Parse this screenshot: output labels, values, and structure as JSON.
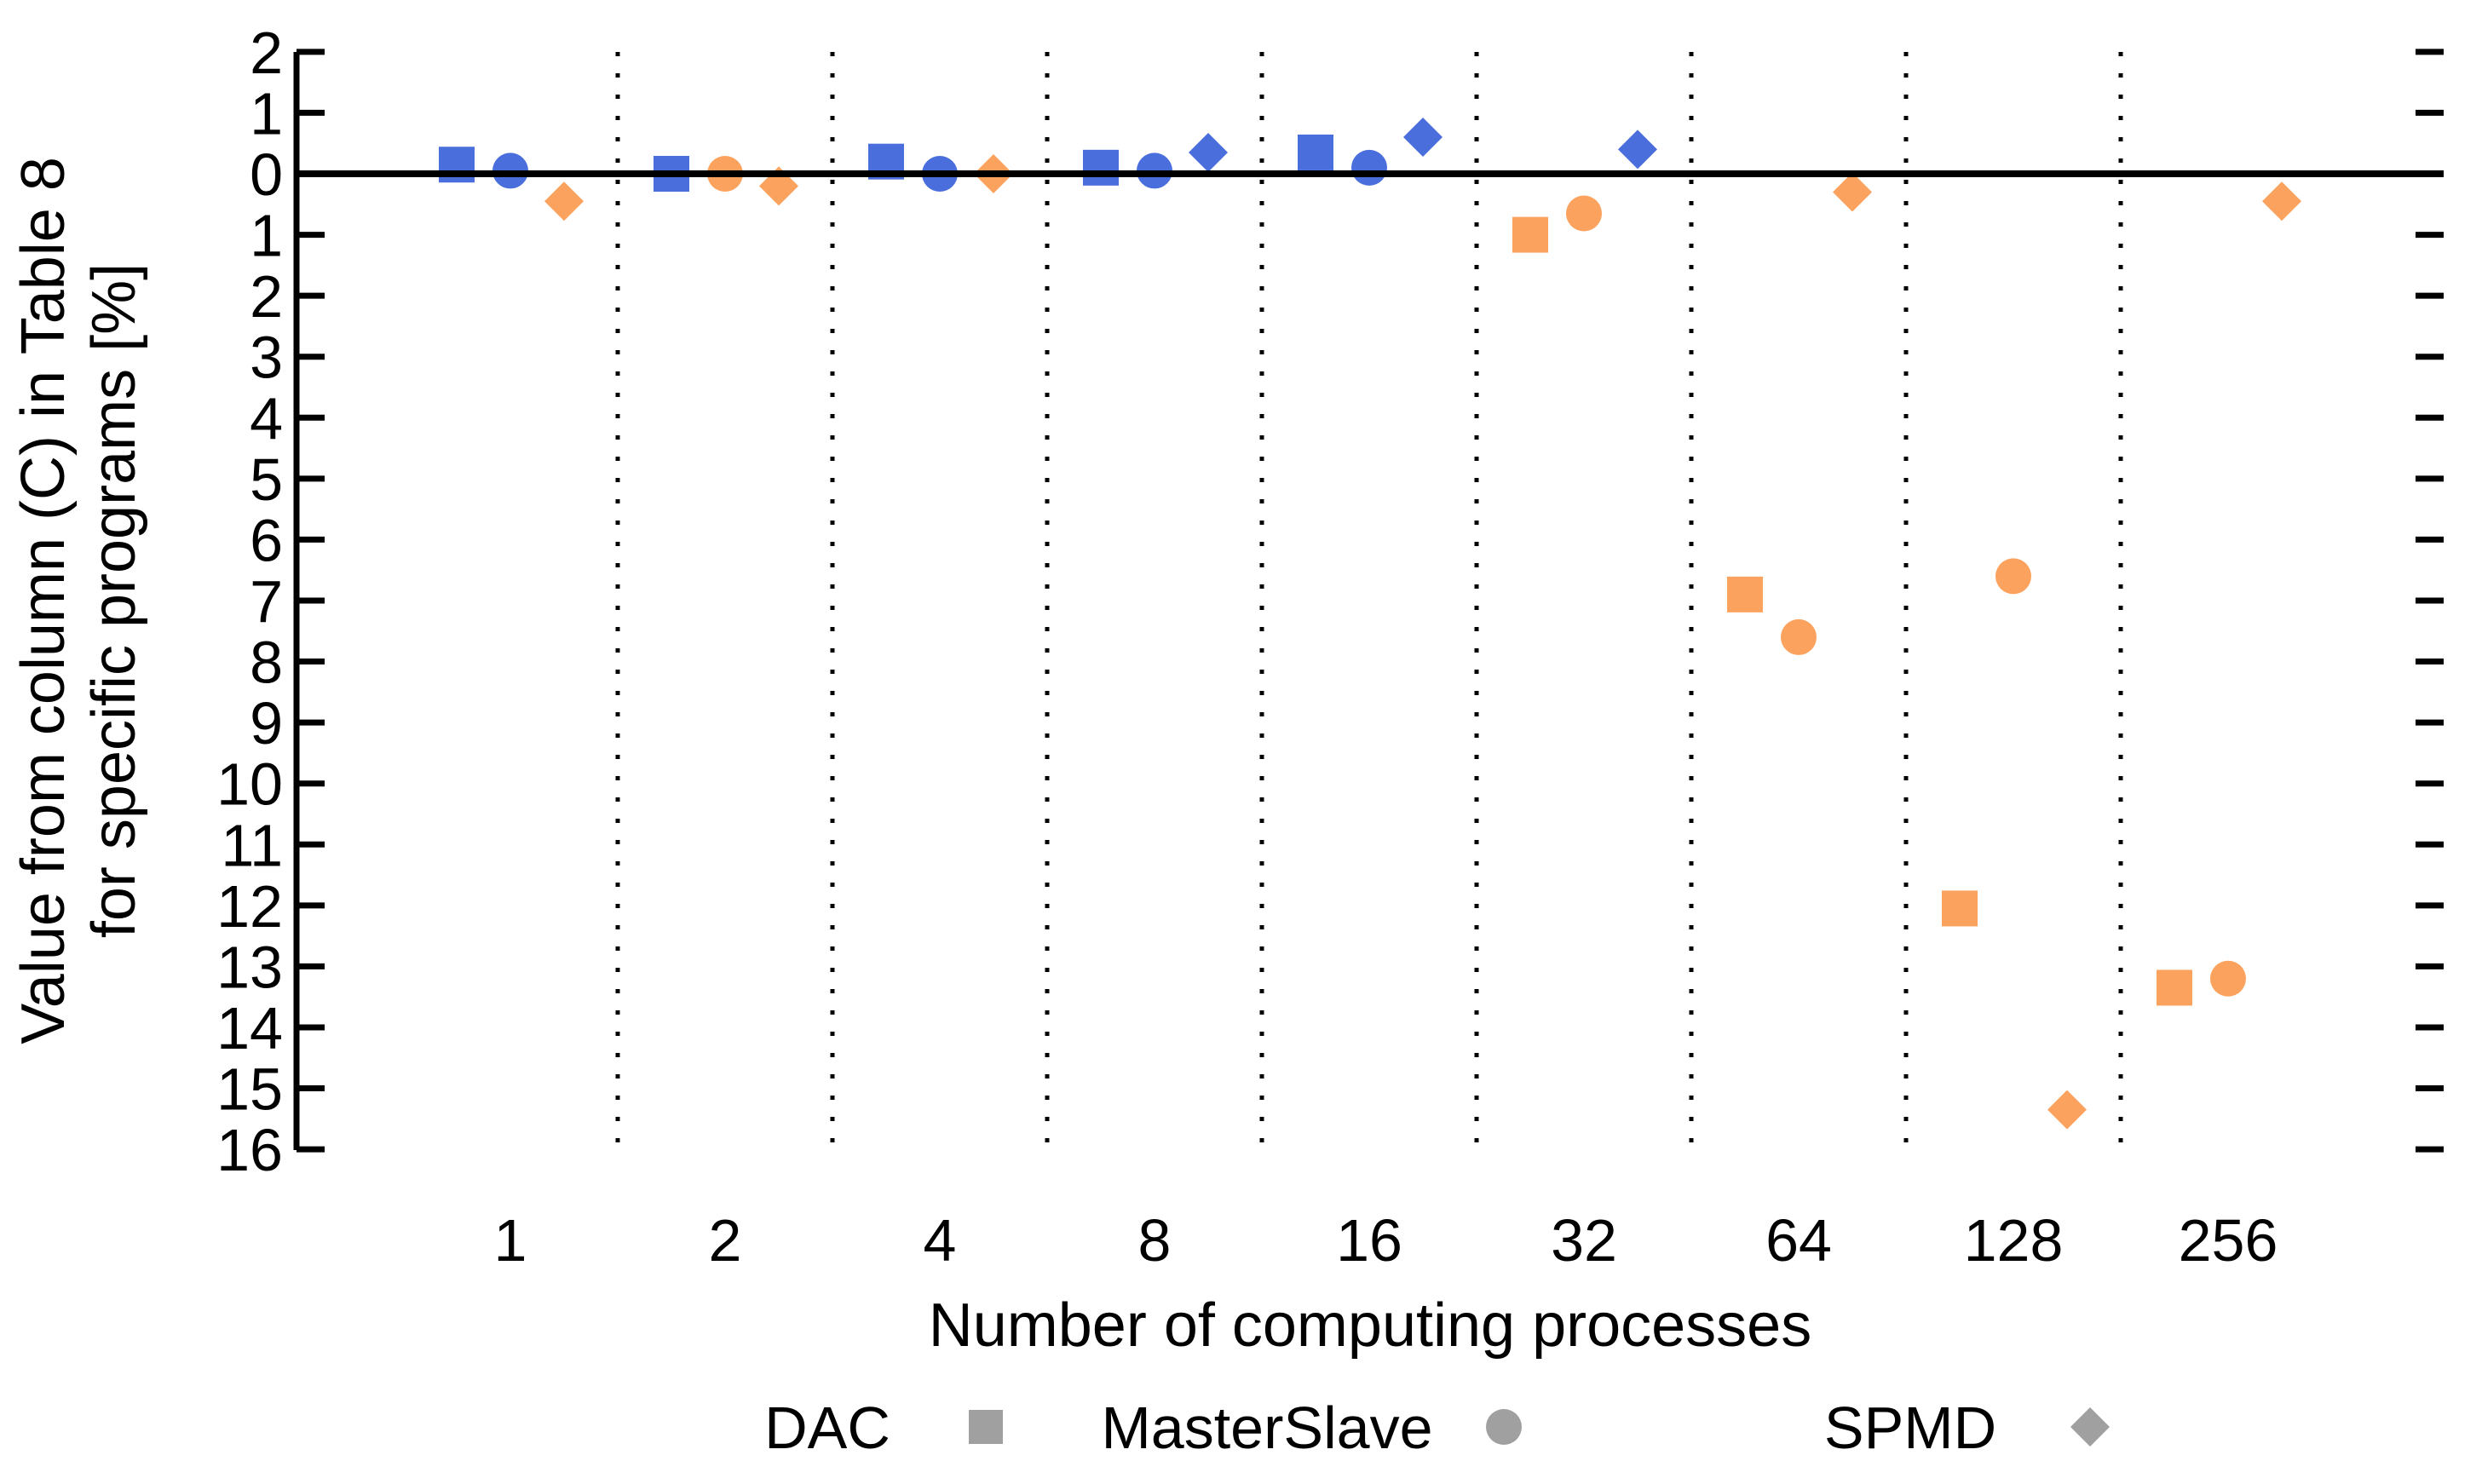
{
  "chart_data": {
    "type": "scatter",
    "title": "",
    "xlabel": "Number of computing processes",
    "ylabel_line1": "Value from column (C) in Table 8",
    "ylabel_line2": "for specific programs [%]",
    "x_categories": [
      "1",
      "2",
      "4",
      "8",
      "16",
      "32",
      "64",
      "128",
      "256"
    ],
    "y_axis": {
      "note": "Axis labels are absolute values: 2,1 above the zero line and 1..16 below it. Series y values below are distances under the zero line in percent (negative = above the line).",
      "labels_top_to_bottom": [
        "2",
        "1",
        "0",
        "1",
        "2",
        "3",
        "4",
        "5",
        "6",
        "7",
        "8",
        "9",
        "10",
        "11",
        "12",
        "13",
        "14",
        "15",
        "16"
      ],
      "unit": "%",
      "grid": "vertical dotted lines between category columns only"
    },
    "series": [
      {
        "name": "DAC",
        "marker": "square",
        "points": [
          {
            "x": "1",
            "y": -0.15,
            "color": "blue"
          },
          {
            "x": "2",
            "y": 0.0,
            "color": "blue"
          },
          {
            "x": "4",
            "y": -0.2,
            "color": "blue"
          },
          {
            "x": "8",
            "y": -0.1,
            "color": "blue"
          },
          {
            "x": "16",
            "y": -0.35,
            "color": "blue"
          },
          {
            "x": "32",
            "y": 1.0,
            "color": "orange"
          },
          {
            "x": "64",
            "y": 6.9,
            "color": "orange"
          },
          {
            "x": "128",
            "y": 12.05,
            "color": "orange"
          },
          {
            "x": "256",
            "y": 13.35,
            "color": "orange"
          }
        ]
      },
      {
        "name": "MasterSlave",
        "marker": "circle",
        "points": [
          {
            "x": "1",
            "y": -0.05,
            "color": "blue"
          },
          {
            "x": "2",
            "y": 0.0,
            "color": "orange"
          },
          {
            "x": "4",
            "y": 0.0,
            "color": "blue"
          },
          {
            "x": "8",
            "y": -0.05,
            "color": "blue"
          },
          {
            "x": "16",
            "y": -0.1,
            "color": "blue"
          },
          {
            "x": "32",
            "y": 0.65,
            "color": "orange"
          },
          {
            "x": "64",
            "y": 7.6,
            "color": "orange"
          },
          {
            "x": "128",
            "y": 6.6,
            "color": "orange"
          },
          {
            "x": "256",
            "y": 13.2,
            "color": "orange"
          }
        ]
      },
      {
        "name": "SPMD",
        "marker": "diamond",
        "points": [
          {
            "x": "1",
            "y": 0.45,
            "color": "orange"
          },
          {
            "x": "2",
            "y": 0.2,
            "color": "orange"
          },
          {
            "x": "4",
            "y": 0.0,
            "color": "orange"
          },
          {
            "x": "8",
            "y": -0.35,
            "color": "blue"
          },
          {
            "x": "16",
            "y": -0.6,
            "color": "blue"
          },
          {
            "x": "32",
            "y": -0.4,
            "color": "blue"
          },
          {
            "x": "64",
            "y": 0.3,
            "color": "orange"
          },
          {
            "x": "128",
            "y": 15.35,
            "color": "orange"
          },
          {
            "x": "256",
            "y": 0.45,
            "color": "orange"
          }
        ]
      }
    ],
    "legend": [
      {
        "label": "DAC",
        "marker": "square"
      },
      {
        "label": "MasterSlave",
        "marker": "circle"
      },
      {
        "label": "SPMD",
        "marker": "diamond"
      }
    ],
    "colors": {
      "blue": "#4a6edb",
      "orange": "#fba35e",
      "legend_gray": "#a0a0a0",
      "axis_black": "#000000"
    }
  }
}
